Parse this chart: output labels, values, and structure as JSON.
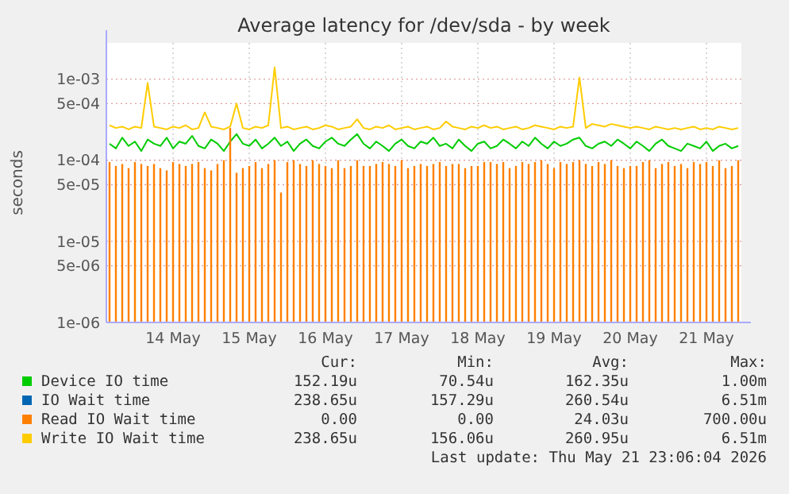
{
  "chart_data": {
    "type": "line",
    "title": "Average latency for /dev/sda - by week",
    "ylabel": "seconds",
    "log": "y",
    "grid": true,
    "legend": "bottom",
    "xlim": [
      "2026-05-13T15:00",
      "2026-05-21T23:00"
    ],
    "xticks": [
      {
        "value": "2026-05-14T12:00",
        "label": "14 May"
      },
      {
        "value": "2026-05-15T12:00",
        "label": "15 May"
      },
      {
        "value": "2026-05-16T12:00",
        "label": "16 May"
      },
      {
        "value": "2026-05-17T12:00",
        "label": "17 May"
      },
      {
        "value": "2026-05-18T12:00",
        "label": "18 May"
      },
      {
        "value": "2026-05-19T12:00",
        "label": "19 May"
      },
      {
        "value": "2026-05-20T12:00",
        "label": "20 May"
      },
      {
        "value": "2026-05-21T12:00",
        "label": "21 May"
      }
    ],
    "ylim": [
      1e-06,
      0.0028
    ],
    "yticks": [
      {
        "value": 1e-06,
        "label": "1e-06"
      },
      {
        "value": 5e-06,
        "label": "5e-06"
      },
      {
        "value": 1e-05,
        "label": "1e-05"
      },
      {
        "value": 5e-05,
        "label": "5e-05"
      },
      {
        "value": 0.0001,
        "label": "1e-04"
      },
      {
        "value": 0.0005,
        "label": "5e-04"
      },
      {
        "value": 0.001,
        "label": "1e-03"
      }
    ],
    "x": [
      "2026-05-13T16:00",
      "2026-05-13T18:00",
      "2026-05-13T20:00",
      "2026-05-13T22:00",
      "2026-05-14T00:00",
      "2026-05-14T02:00",
      "2026-05-14T04:00",
      "2026-05-14T06:00",
      "2026-05-14T08:00",
      "2026-05-14T10:00",
      "2026-05-14T12:00",
      "2026-05-14T14:00",
      "2026-05-14T16:00",
      "2026-05-14T18:00",
      "2026-05-14T20:00",
      "2026-05-14T22:00",
      "2026-05-15T00:00",
      "2026-05-15T02:00",
      "2026-05-15T04:00",
      "2026-05-15T06:00",
      "2026-05-15T08:00",
      "2026-05-15T10:00",
      "2026-05-15T12:00",
      "2026-05-15T14:00",
      "2026-05-15T16:00",
      "2026-05-15T18:00",
      "2026-05-15T20:00",
      "2026-05-15T22:00",
      "2026-05-16T00:00",
      "2026-05-16T02:00",
      "2026-05-16T04:00",
      "2026-05-16T06:00",
      "2026-05-16T08:00",
      "2026-05-16T10:00",
      "2026-05-16T12:00",
      "2026-05-16T14:00",
      "2026-05-16T16:00",
      "2026-05-16T18:00",
      "2026-05-16T20:00",
      "2026-05-16T22:00",
      "2026-05-17T00:00",
      "2026-05-17T02:00",
      "2026-05-17T04:00",
      "2026-05-17T06:00",
      "2026-05-17T08:00",
      "2026-05-17T10:00",
      "2026-05-17T12:00",
      "2026-05-17T14:00",
      "2026-05-17T16:00",
      "2026-05-17T18:00",
      "2026-05-17T20:00",
      "2026-05-17T22:00",
      "2026-05-18T00:00",
      "2026-05-18T02:00",
      "2026-05-18T04:00",
      "2026-05-18T06:00",
      "2026-05-18T08:00",
      "2026-05-18T10:00",
      "2026-05-18T12:00",
      "2026-05-18T14:00",
      "2026-05-18T16:00",
      "2026-05-18T18:00",
      "2026-05-18T20:00",
      "2026-05-18T22:00",
      "2026-05-19T00:00",
      "2026-05-19T02:00",
      "2026-05-19T04:00",
      "2026-05-19T06:00",
      "2026-05-19T08:00",
      "2026-05-19T10:00",
      "2026-05-19T12:00",
      "2026-05-19T14:00",
      "2026-05-19T16:00",
      "2026-05-19T18:00",
      "2026-05-19T20:00",
      "2026-05-19T22:00",
      "2026-05-20T00:00",
      "2026-05-20T02:00",
      "2026-05-20T04:00",
      "2026-05-20T06:00",
      "2026-05-20T08:00",
      "2026-05-20T10:00",
      "2026-05-20T12:00",
      "2026-05-20T14:00",
      "2026-05-20T16:00",
      "2026-05-20T18:00",
      "2026-05-20T20:00",
      "2026-05-20T22:00",
      "2026-05-21T00:00",
      "2026-05-21T02:00",
      "2026-05-21T04:00",
      "2026-05-21T06:00",
      "2026-05-21T08:00",
      "2026-05-21T10:00",
      "2026-05-21T12:00",
      "2026-05-21T14:00",
      "2026-05-21T16:00",
      "2026-05-21T18:00",
      "2026-05-21T20:00",
      "2026-05-21T22:00"
    ],
    "series": [
      {
        "name": "Device IO time",
        "color": "#00cc00",
        "values": [
          0.00016,
          0.00014,
          0.00019,
          0.00015,
          0.00017,
          0.00013,
          0.00018,
          0.00016,
          0.00015,
          0.00019,
          0.00014,
          0.00017,
          0.00016,
          0.0002,
          0.00015,
          0.00014,
          0.00018,
          0.00016,
          0.00013,
          0.00017,
          0.00021,
          0.00016,
          0.00015,
          0.00018,
          0.00014,
          0.00016,
          0.00019,
          0.00015,
          0.00017,
          0.00013,
          0.00016,
          0.00018,
          0.00015,
          0.00014,
          0.00017,
          0.00019,
          0.00016,
          0.00015,
          0.00018,
          0.00021,
          0.00016,
          0.00014,
          0.00017,
          0.00015,
          0.00013,
          0.00016,
          0.00018,
          0.00015,
          0.00014,
          0.00017,
          0.00016,
          0.00019,
          0.00015,
          0.00016,
          0.00014,
          0.00018,
          0.00015,
          0.00013,
          0.00016,
          0.00017,
          0.00014,
          0.00015,
          0.00018,
          0.00016,
          0.00014,
          0.00017,
          0.00015,
          0.00019,
          0.00016,
          0.00014,
          0.00017,
          0.00015,
          0.00016,
          0.00018,
          0.00019,
          0.00015,
          0.00014,
          0.00016,
          0.00017,
          0.00015,
          0.00018,
          0.00016,
          0.00014,
          0.00017,
          0.00015,
          0.00013,
          0.00016,
          0.00018,
          0.00015,
          0.00014,
          0.00013,
          0.00016,
          0.00015,
          0.00014,
          0.00017,
          0.00013,
          0.00015,
          0.00016,
          0.00014,
          0.00015
        ]
      },
      {
        "name": "IO Wait time",
        "color": "#0066b3",
        "values": [
          null,
          null,
          null,
          null,
          null,
          null,
          null,
          null,
          null,
          null,
          null,
          null,
          null,
          null,
          null,
          null,
          null,
          null,
          null,
          null,
          null,
          null,
          null,
          null,
          null,
          null,
          null,
          null,
          null,
          null,
          null,
          null,
          null,
          null,
          null,
          null,
          null,
          null,
          null,
          null,
          null,
          null,
          null,
          null,
          null,
          null,
          null,
          null,
          null,
          null,
          null,
          null,
          null,
          null,
          null,
          null,
          null,
          null,
          null,
          null,
          null,
          null,
          null,
          null,
          null,
          null,
          null,
          null,
          null,
          null,
          null,
          null,
          null,
          null,
          null,
          null,
          null,
          null,
          null,
          null,
          null,
          null,
          null,
          null,
          null,
          null,
          null,
          null,
          null,
          null,
          null,
          null,
          null,
          null,
          null,
          null,
          null,
          null,
          null,
          null
        ]
      },
      {
        "name": "Read IO Wait time",
        "color": "#ff8000",
        "type": "bar",
        "values": [
          9.5e-05,
          8.5e-05,
          9e-05,
          8e-05,
          9.5e-05,
          9e-05,
          8.5e-05,
          9e-05,
          8e-05,
          7.5e-05,
          9.5e-05,
          9e-05,
          8.5e-05,
          9e-05,
          9.5e-05,
          8e-05,
          7.5e-05,
          9e-05,
          0.0001,
          0.00025,
          7e-05,
          8e-05,
          8.5e-05,
          9.5e-05,
          8e-05,
          9e-05,
          0.0001,
          4e-05,
          9.5e-05,
          0.0001,
          9e-05,
          8.5e-05,
          0.0001,
          9e-05,
          8.5e-05,
          8e-05,
          0.0001,
          8e-05,
          8.5e-05,
          0.0001,
          8.5e-05,
          8.5e-05,
          9e-05,
          9.5e-05,
          9e-05,
          8.5e-05,
          0.0001,
          8e-05,
          8.5e-05,
          9e-05,
          8.5e-05,
          9e-05,
          9.5e-05,
          8.5e-05,
          9e-05,
          9e-05,
          8e-05,
          8.5e-05,
          8.5e-05,
          9.5e-05,
          9.5e-05,
          9e-05,
          9.5e-05,
          8e-05,
          8.5e-05,
          9.5e-05,
          9e-05,
          9.5e-05,
          0.0001,
          9e-05,
          8e-05,
          9.5e-05,
          9e-05,
          9.5e-05,
          0.0001,
          9e-05,
          8.5e-05,
          9.5e-05,
          9e-05,
          0.0001,
          8.5e-05,
          8e-05,
          8.5e-05,
          8.5e-05,
          9.5e-05,
          0.0001,
          8e-05,
          9e-05,
          9.5e-05,
          8.5e-05,
          9e-05,
          8e-05,
          9.5e-05,
          9e-05,
          9.5e-05,
          8.5e-05,
          0.0001,
          8e-05,
          8.5e-05,
          0.0001
        ]
      },
      {
        "name": "Write IO Wait time",
        "color": "#ffcc00",
        "values": [
          0.00027,
          0.00025,
          0.00026,
          0.00024,
          0.00026,
          0.00025,
          0.0009,
          0.00026,
          0.00025,
          0.00024,
          0.00026,
          0.00025,
          0.00027,
          0.00024,
          0.00025,
          0.00039,
          0.00026,
          0.00025,
          0.00024,
          0.00026,
          0.0005,
          0.00025,
          0.00024,
          0.00026,
          0.00025,
          0.00027,
          0.0014,
          0.00025,
          0.00026,
          0.00024,
          0.00025,
          0.00026,
          0.00024,
          0.00025,
          0.00027,
          0.00026,
          0.00024,
          0.00025,
          0.00026,
          0.00032,
          0.00025,
          0.00024,
          0.00026,
          0.00025,
          0.00027,
          0.00024,
          0.00025,
          0.00026,
          0.00024,
          0.00025,
          0.00026,
          0.00024,
          0.00025,
          0.0003,
          0.00026,
          0.00025,
          0.00024,
          0.00026,
          0.00025,
          0.00027,
          0.00025,
          0.00026,
          0.00024,
          0.00025,
          0.00026,
          0.00024,
          0.00025,
          0.00027,
          0.00026,
          0.00025,
          0.00024,
          0.00026,
          0.00025,
          0.00026,
          0.00105,
          0.00025,
          0.00028,
          0.00027,
          0.00026,
          0.00028,
          0.00027,
          0.00026,
          0.00025,
          0.00026,
          0.00025,
          0.00024,
          0.00026,
          0.00025,
          0.00024,
          0.00025,
          0.00024,
          0.00025,
          0.00026,
          0.00024,
          0.00025,
          0.00024,
          0.00026,
          0.00025,
          0.00024,
          0.00025
        ]
      }
    ],
    "annotations": [
      "Cur:",
      "Min:",
      "Avg:",
      "Max:",
      "152.19u",
      "70.54u",
      "162.35u",
      "1.00m",
      "238.65u",
      "157.29u",
      "260.54u",
      "6.51m",
      "0.00",
      "0.00",
      "24.03u",
      "700.00u",
      "238.65u",
      "156.06u",
      "260.95u",
      "6.51m",
      "Last update: Thu May 21 23:06:04 2026"
    ]
  }
}
